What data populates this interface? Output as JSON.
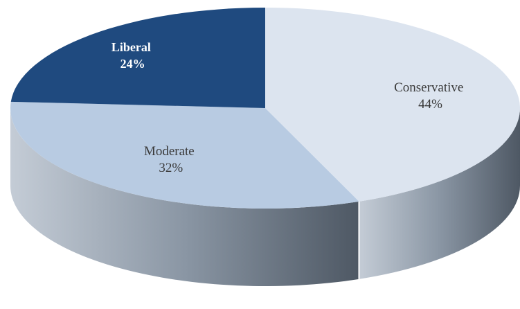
{
  "chart_data": {
    "type": "pie",
    "style": "3d",
    "start_angle_deg": 0,
    "direction": "clockwise",
    "slices": [
      {
        "label": "Conservative",
        "pct_label": "44%",
        "value": 44,
        "color": "#dce4ef",
        "side_color": "#7e8894",
        "text_color": "#3a3a3a"
      },
      {
        "label": "Moderate",
        "pct_label": "32%",
        "value": 32,
        "color": "#b8cbe2",
        "side_color": "#6e7c8c",
        "text_color": "#3a3a3a"
      },
      {
        "label": "Liberal",
        "pct_label": "24%",
        "value": 24,
        "color": "#1f4a7f",
        "side_color": "#163558",
        "text_color": "#ffffff"
      }
    ],
    "legend": "none",
    "title": ""
  }
}
